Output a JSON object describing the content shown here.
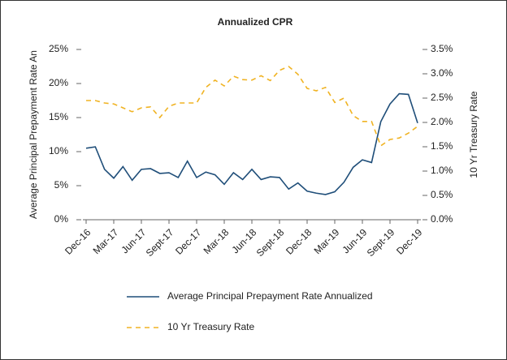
{
  "chart_data": {
    "type": "line",
    "title": "Annualized CPR",
    "y_label": "Average Principal Prepayment Rate An",
    "y2_label": "10 Yr Treasury Rate",
    "categories": [
      "Dec-16",
      null,
      null,
      "Mar-17",
      null,
      null,
      "Jun-17",
      null,
      null,
      "Sept-17",
      null,
      null,
      "Dec-17",
      null,
      null,
      "Mar-18",
      null,
      null,
      "Jun-18",
      null,
      null,
      "Sept-18",
      null,
      null,
      "Dec-18",
      null,
      null,
      "Mar-19",
      null,
      null,
      "Jun-19",
      null,
      null,
      "Sept-19",
      null,
      null,
      "Dec-19"
    ],
    "series": [
      {
        "name": "Average Principal Prepayment Rate Annualized",
        "color": "#1f4e79",
        "dashed": false,
        "values": [
          10.5,
          10.7,
          7.4,
          6.1,
          7.8,
          5.8,
          7.4,
          7.5,
          6.8,
          6.9,
          6.2,
          8.6,
          6.2,
          7.0,
          6.6,
          5.2,
          6.9,
          5.9,
          7.4,
          5.9,
          6.3,
          6.2,
          4.5,
          5.4,
          4.2,
          3.9,
          3.7,
          4.1,
          5.5,
          7.7,
          8.8,
          8.4,
          14.4,
          17.0,
          18.5,
          18.4,
          14.2
        ]
      },
      {
        "name": "10 Yr Treasury Rate",
        "color": "#f0b323",
        "dashed": true,
        "axis": "y2",
        "values": [
          2.45,
          2.45,
          2.4,
          2.38,
          2.3,
          2.22,
          2.3,
          2.32,
          2.1,
          2.33,
          2.4,
          2.4,
          2.4,
          2.72,
          2.87,
          2.75,
          2.95,
          2.88,
          2.87,
          2.96,
          2.86,
          3.07,
          3.15,
          2.99,
          2.7,
          2.65,
          2.72,
          2.41,
          2.5,
          2.14,
          2.02,
          2.02,
          1.52,
          1.65,
          1.68,
          1.78,
          1.92
        ]
      }
    ],
    "ylim": [
      0,
      25
    ],
    "yticks": [
      {
        "value": 0,
        "label": "0%"
      },
      {
        "value": 5,
        "label": "5%"
      },
      {
        "value": 10,
        "label": "10%"
      },
      {
        "value": 15,
        "label": "15%"
      },
      {
        "value": 20,
        "label": "20%"
      },
      {
        "value": 25,
        "label": "25%"
      }
    ],
    "y2lim": [
      0,
      3.5
    ],
    "y2ticks": [
      {
        "value": 0,
        "label": "0.0%"
      },
      {
        "value": 0.5,
        "label": "0.5%"
      },
      {
        "value": 1,
        "label": "1.0%"
      },
      {
        "value": 1.5,
        "label": "1.5%"
      },
      {
        "value": 2,
        "label": "2.0%"
      },
      {
        "value": 2.5,
        "label": "2.5%"
      },
      {
        "value": 3,
        "label": "3.0%"
      },
      {
        "value": 3.5,
        "label": "3.5%"
      }
    ],
    "legend": "bottom"
  }
}
